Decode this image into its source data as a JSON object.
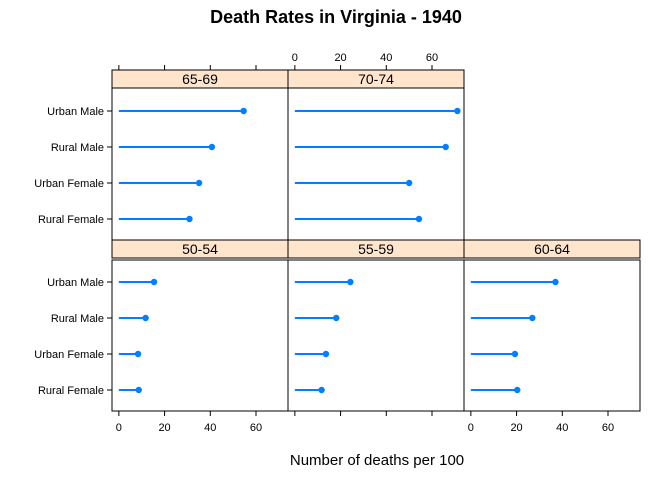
{
  "chart_data": {
    "type": "dotplot",
    "title": "Death Rates in Virginia - 1940",
    "xlabel": "Number of deaths per 100",
    "xlim": [
      -3,
      74
    ],
    "x_ticks": [
      0,
      20,
      40,
      60
    ],
    "x_tick_labels": [
      "0",
      "20",
      "40",
      "60"
    ],
    "categories": [
      "Urban Male",
      "Rural Male",
      "Urban Female",
      "Rural Female"
    ],
    "series_color": "#0080ff",
    "strip_color": "#ffe5cc",
    "panels": [
      {
        "label": "65-69",
        "values": {
          "Urban Male": 54.6,
          "Rural Male": 40.7,
          "Urban Female": 35.1,
          "Rural Female": 30.9
        }
      },
      {
        "label": "70-74",
        "values": {
          "Urban Male": 71.1,
          "Rural Male": 66.0,
          "Urban Female": 50.0,
          "Rural Female": 54.3
        }
      },
      {
        "label": "50-54",
        "values": {
          "Urban Male": 15.4,
          "Rural Male": 11.7,
          "Urban Female": 8.4,
          "Rural Female": 8.7
        }
      },
      {
        "label": "55-59",
        "values": {
          "Urban Male": 24.3,
          "Rural Male": 18.1,
          "Urban Female": 13.6,
          "Rural Female": 11.7
        }
      },
      {
        "label": "60-64",
        "values": {
          "Urban Male": 37.0,
          "Rural Male": 26.9,
          "Urban Female": 19.3,
          "Rural Female": 20.3
        }
      }
    ]
  }
}
